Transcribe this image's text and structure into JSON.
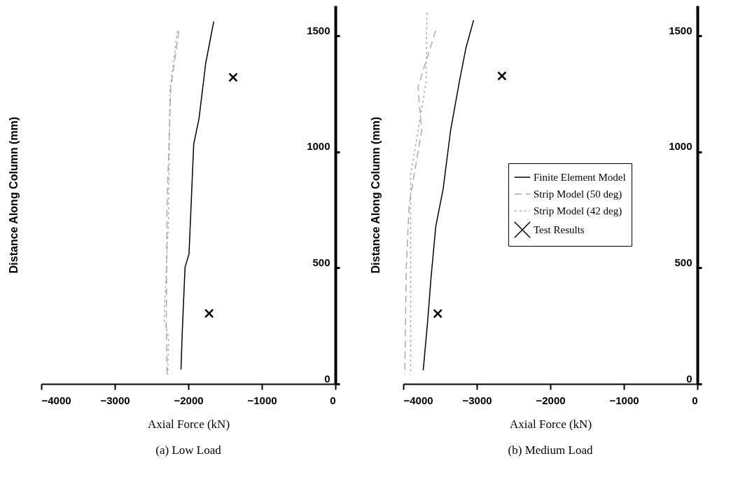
{
  "chart_data": [
    {
      "type": "line",
      "title": "(a) Low Load",
      "xlabel": "Axial Force (kN)",
      "ylabel": "Distance Along Column (mm)",
      "xlim": [
        -4000,
        0
      ],
      "ylim": [
        0,
        1630
      ],
      "xticks": [
        -4000,
        -3000,
        -2000,
        -1000,
        0
      ],
      "yticks": [
        0,
        500,
        1000,
        1500
      ],
      "grid": false,
      "legend": false,
      "series": [
        {
          "type": "line",
          "color": "#000000",
          "line_style": "solid",
          "x": [
            -1655,
            -1764,
            -1855,
            -1927,
            -1991,
            -2045,
            -2082,
            -2100
          ],
          "values": [
            1562,
            1381,
            1143,
            1033,
            560,
            503,
            229,
            62
          ]
        },
        {
          "type": "line",
          "color": "#aaaaaa",
          "line_style": "dashed",
          "x": [
            -2130,
            -2240,
            -2290,
            -2300,
            -2290
          ],
          "values": [
            1520,
            1270,
            770,
            250,
            40
          ]
        },
        {
          "type": "line",
          "color": "#aaaaaa",
          "line_style": "dotted",
          "x": [
            -2150,
            -2250,
            -2270,
            -2330,
            -2270,
            -2280
          ],
          "values": [
            1520,
            1270,
            700,
            280,
            200,
            40
          ]
        },
        {
          "type": "scatter",
          "color": "#000000",
          "marker": "cross",
          "x": [
            -1391,
            -1718
          ],
          "values": [
            1321,
            304
          ]
        }
      ]
    },
    {
      "type": "line",
      "title": "(b) Medium Load",
      "xlabel": "Axial Force (kN)",
      "ylabel": "Distance Along Column (mm)",
      "xlim": [
        -4000,
        0
      ],
      "ylim": [
        0,
        1630
      ],
      "xticks": [
        -4000,
        -3000,
        -2000,
        -1000,
        0
      ],
      "yticks": [
        0,
        500,
        1000,
        1500
      ],
      "grid": false,
      "legend": "right",
      "series": [
        {
          "type": "line",
          "name": "Finite Element Model",
          "color": "#000000",
          "line_style": "solid",
          "x": [
            -3044,
            -3150,
            -3237,
            -3357,
            -3458,
            -3559,
            -3623,
            -3669,
            -3729
          ],
          "values": [
            1567,
            1445,
            1303,
            1092,
            840,
            677,
            457,
            270,
            59
          ]
        },
        {
          "type": "line",
          "name": "Strip Model (50 deg)",
          "color": "#aaaaaa",
          "line_style": "dashed",
          "x": [
            -3560,
            -3800,
            -3750,
            -3920,
            -3960,
            -3980
          ],
          "values": [
            1522,
            1279,
            1092,
            775,
            500,
            40
          ]
        },
        {
          "type": "line",
          "name": "Strip Model (42 deg)",
          "color": "#aaaaaa",
          "line_style": "dotted",
          "x": [
            -3680,
            -3690,
            -3900,
            -3900,
            -3900
          ],
          "values": [
            1600,
            1300,
            900,
            400,
            40
          ]
        },
        {
          "type": "scatter",
          "name": "Test Results",
          "color": "#000000",
          "marker": "cross",
          "x": [
            -2658,
            -3531
          ],
          "values": [
            1327,
            303
          ]
        }
      ]
    }
  ]
}
